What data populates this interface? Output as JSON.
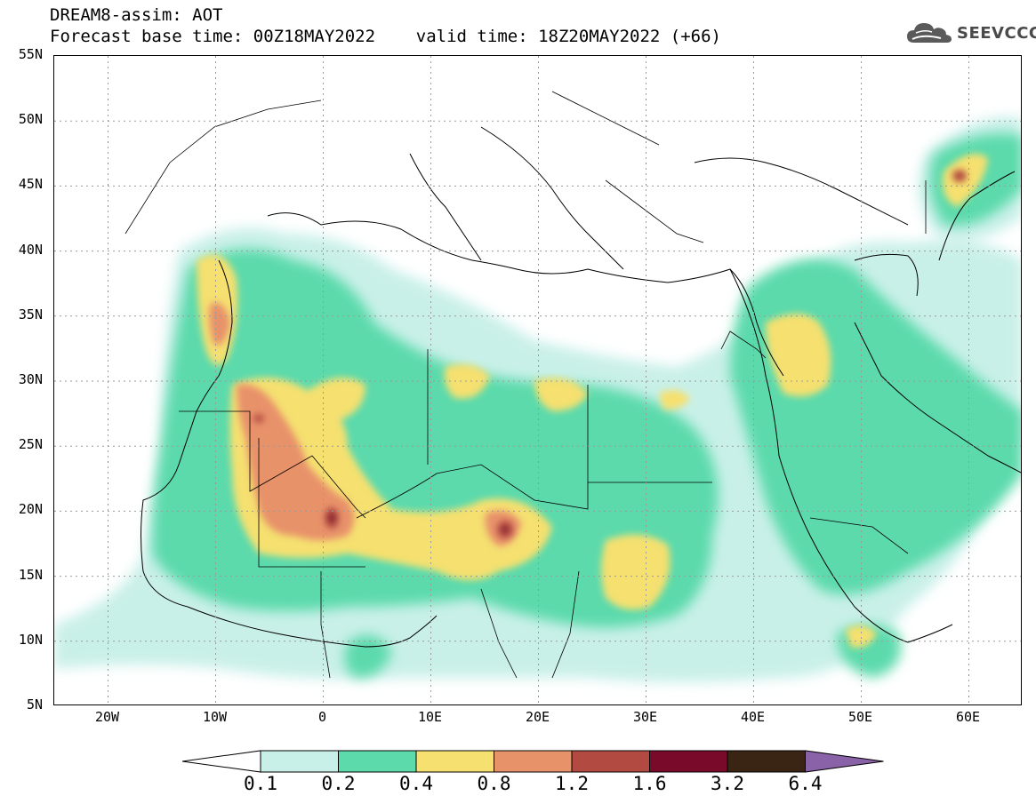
{
  "header": {
    "title_line1": "DREAM8-assim: AOT",
    "title_line2": "Forecast base time: 00Z18MAY2022    valid time: 18Z20MAY2022 (+66)"
  },
  "logo": {
    "text": "SEEVCCC",
    "icon": "cloud-icon"
  },
  "map": {
    "lon_range": [
      -25,
      65
    ],
    "lat_range": [
      5,
      55
    ],
    "lat_ticks": [
      "55N",
      "50N",
      "45N",
      "40N",
      "35N",
      "30N",
      "25N",
      "20N",
      "15N",
      "10N",
      "5N"
    ],
    "lon_ticks": [
      "20W",
      "10W",
      "0",
      "10E",
      "20E",
      "30E",
      "40E",
      "50E",
      "60E"
    ],
    "grid": true
  },
  "colorbar": {
    "labels": [
      "0.1",
      "0.2",
      "0.4",
      "0.8",
      "1.2",
      "1.6",
      "3.2",
      "6.4"
    ],
    "colors": [
      "#ffffff",
      "#c9f0e8",
      "#5cdaac",
      "#f5e070",
      "#e8926a",
      "#b34a42",
      "#7a0a2a",
      "#3a2414",
      "#8a62a8"
    ]
  }
}
